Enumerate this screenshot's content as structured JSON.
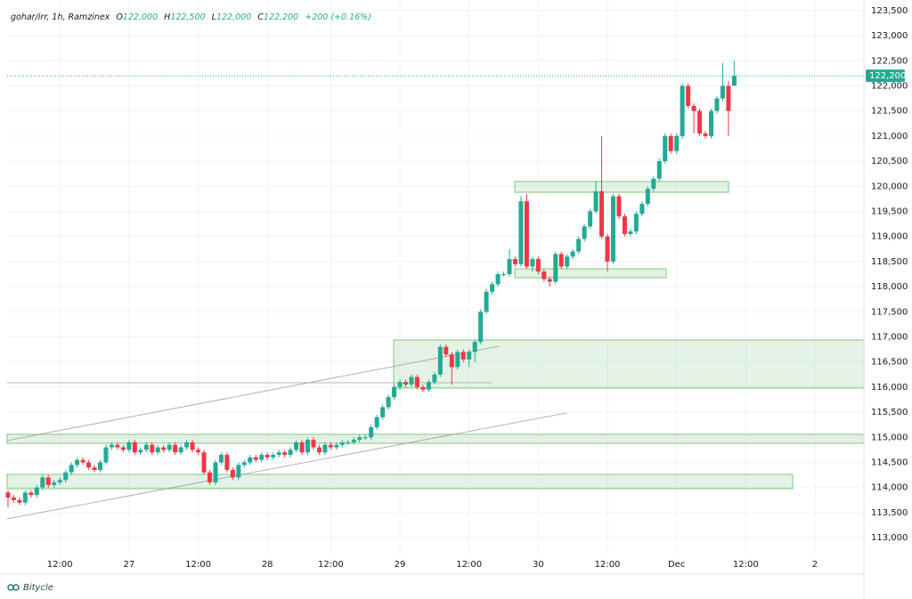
{
  "chart_data": {
    "type": "candlestick",
    "header": {
      "symbol": "gohar/irr, 1h, Ramzinex",
      "open_label": "O",
      "open": "122,000",
      "high_label": "H",
      "high": "122,500",
      "low_label": "L",
      "low": "122,000",
      "close_label": "C",
      "close": "122,200",
      "change": "+200 (+0.16%)"
    },
    "watermark": "Bitycle",
    "up_color": "#22ab94",
    "down_color": "#f23645",
    "grid": true,
    "open": [
      113900,
      113800,
      113750,
      113700,
      113900,
      113850,
      114000,
      114200,
      114050,
      114100,
      114150,
      114300,
      114450,
      114550,
      114500,
      114400,
      114350,
      114500,
      114800,
      114850,
      114800,
      114750,
      114900,
      114700,
      114750,
      114850,
      114700,
      114800,
      114750,
      114850,
      114700,
      114800,
      114900,
      114750,
      114700,
      114300,
      114100,
      114500,
      114650,
      114350,
      114200,
      114450,
      114500,
      114600,
      114550,
      114650,
      114600,
      114650,
      114700,
      114650,
      114750,
      114900,
      114700,
      114950,
      114800,
      114700,
      114850,
      114800,
      114850,
      114900,
      114900,
      114950,
      115000,
      115000,
      115200,
      115400,
      115600,
      115800,
      116000,
      116100,
      116050,
      116200,
      116000,
      115950,
      116100,
      116250,
      116800,
      116650,
      116400,
      116700,
      116550,
      116700,
      116900,
      117500,
      117900,
      118050,
      118250,
      118250,
      118550,
      118450,
      119700,
      118400,
      118550,
      118300,
      118150,
      118100,
      118650,
      118400,
      118600,
      118700,
      118950,
      119200,
      119500,
      119900,
      119000,
      118500,
      119800,
      119400,
      119050,
      119100,
      119450,
      119650,
      119950,
      120150,
      120500,
      121000,
      120700,
      121000,
      122000,
      121600,
      121500,
      121050,
      121000,
      121500,
      121750,
      122000,
      122000
    ],
    "high": [
      113950,
      113850,
      113800,
      113950,
      113950,
      114050,
      114250,
      114250,
      114150,
      114200,
      114350,
      114500,
      114600,
      114600,
      114550,
      114450,
      114550,
      114850,
      114900,
      114900,
      114850,
      114950,
      114950,
      114800,
      114900,
      114900,
      114850,
      114850,
      114900,
      114900,
      114850,
      114950,
      114950,
      114800,
      114750,
      114350,
      114550,
      114700,
      114700,
      114400,
      114500,
      114550,
      114650,
      114650,
      114700,
      114700,
      114700,
      114750,
      114750,
      114800,
      114950,
      114950,
      115000,
      115000,
      114850,
      114900,
      114900,
      114900,
      114950,
      114950,
      115000,
      115050,
      115050,
      115250,
      115450,
      115650,
      115850,
      116050,
      116150,
      116150,
      116250,
      116250,
      116050,
      116150,
      116300,
      116850,
      116850,
      116700,
      116750,
      116750,
      116750,
      116950,
      117550,
      117950,
      118100,
      118300,
      118300,
      118750,
      118600,
      119800,
      119850,
      118600,
      118600,
      118350,
      118200,
      118700,
      118700,
      118650,
      118750,
      119000,
      119250,
      119550,
      120100,
      121000,
      119050,
      119850,
      119850,
      119450,
      119150,
      119500,
      119700,
      120000,
      120200,
      120550,
      121050,
      121050,
      121050,
      122050,
      122050,
      121650,
      121550,
      121100,
      121550,
      121800,
      122450,
      122100,
      122500
    ],
    "low": [
      113600,
      113700,
      113650,
      113650,
      113800,
      113800,
      113950,
      114000,
      114000,
      114050,
      114100,
      114250,
      114400,
      114450,
      114350,
      114300,
      114300,
      114450,
      114750,
      114750,
      114700,
      114700,
      114650,
      114650,
      114700,
      114650,
      114650,
      114700,
      114700,
      114650,
      114650,
      114750,
      114700,
      114650,
      114250,
      114050,
      114050,
      114450,
      114300,
      114150,
      114150,
      114400,
      114450,
      114500,
      114500,
      114550,
      114550,
      114600,
      114600,
      114600,
      114700,
      114650,
      114650,
      114750,
      114650,
      114650,
      114750,
      114750,
      114800,
      114850,
      114850,
      114900,
      114950,
      114950,
      115150,
      115350,
      115550,
      115750,
      115950,
      116000,
      116000,
      115950,
      115900,
      115900,
      116050,
      116200,
      116600,
      116050,
      116350,
      116500,
      116400,
      116500,
      116850,
      117450,
      117850,
      118000,
      118200,
      118200,
      118400,
      118400,
      118350,
      118300,
      118250,
      118100,
      118000,
      118050,
      118350,
      118350,
      118550,
      118650,
      118900,
      119150,
      119450,
      118950,
      118300,
      118450,
      119350,
      119000,
      119000,
      119050,
      119400,
      119600,
      119900,
      120100,
      120450,
      120650,
      120650,
      120950,
      121550,
      121050,
      121000,
      120950,
      120950,
      121450,
      121700,
      121000,
      122000
    ],
    "close": [
      113800,
      113750,
      113700,
      113900,
      113850,
      114000,
      114200,
      114050,
      114100,
      114150,
      114300,
      114450,
      114550,
      114500,
      114400,
      114350,
      114500,
      114800,
      114850,
      114800,
      114750,
      114900,
      114700,
      114750,
      114850,
      114700,
      114800,
      114750,
      114850,
      114700,
      114800,
      114900,
      114750,
      114700,
      114300,
      114100,
      114500,
      114650,
      114350,
      114200,
      114450,
      114500,
      114600,
      114550,
      114650,
      114600,
      114650,
      114700,
      114650,
      114750,
      114900,
      114700,
      114950,
      114800,
      114700,
      114850,
      114800,
      114850,
      114900,
      114900,
      114950,
      115000,
      115000,
      115200,
      115400,
      115600,
      115800,
      116000,
      116100,
      116050,
      116200,
      116000,
      115950,
      116100,
      116250,
      116800,
      116650,
      116400,
      116700,
      116550,
      116700,
      116900,
      117500,
      117900,
      118050,
      118250,
      118250,
      118550,
      118450,
      119700,
      118400,
      118550,
      118300,
      118150,
      118100,
      118650,
      118400,
      118600,
      118700,
      118950,
      119200,
      119500,
      119900,
      119000,
      118500,
      119800,
      119400,
      119050,
      119100,
      119450,
      119650,
      119950,
      120150,
      120500,
      121000,
      120700,
      121000,
      122000,
      121600,
      121500,
      121050,
      121000,
      121500,
      121750,
      122000,
      121500,
      122200
    ],
    "last_price": {
      "value": 122200,
      "label": "122,200"
    },
    "xlim": [
      -0.15,
      148.5
    ],
    "xticks": [
      {
        "value": 9,
        "label": "12:00"
      },
      {
        "value": 21,
        "label": "27"
      },
      {
        "value": 33,
        "label": "12:00"
      },
      {
        "value": 45,
        "label": "28"
      },
      {
        "value": 56,
        "label": "12:00"
      },
      {
        "value": 68,
        "label": "29"
      },
      {
        "value": 80,
        "label": "12:00"
      },
      {
        "value": 92,
        "label": "30"
      },
      {
        "value": 104,
        "label": "12:00"
      },
      {
        "value": 116,
        "label": "Dec"
      },
      {
        "value": 128,
        "label": "12:00"
      },
      {
        "value": 140,
        "label": "2"
      }
    ],
    "ylim": [
      112630,
      123710
    ],
    "yticks": [
      {
        "value": 113000,
        "label": "113,000"
      },
      {
        "value": 113500,
        "label": "113,500"
      },
      {
        "value": 114000,
        "label": "114,000"
      },
      {
        "value": 114500,
        "label": "114,500"
      },
      {
        "value": 115000,
        "label": "115,000"
      },
      {
        "value": 115500,
        "label": "115,500"
      },
      {
        "value": 116000,
        "label": "116,000"
      },
      {
        "value": 116500,
        "label": "116,500"
      },
      {
        "value": 117000,
        "label": "117,000"
      },
      {
        "value": 117500,
        "label": "117,500"
      },
      {
        "value": 118000,
        "label": "118,000"
      },
      {
        "value": 118500,
        "label": "118,500"
      },
      {
        "value": 119000,
        "label": "119,000"
      },
      {
        "value": 119500,
        "label": "119,500"
      },
      {
        "value": 120000,
        "label": "120,000"
      },
      {
        "value": 120500,
        "label": "120,500"
      },
      {
        "value": 121000,
        "label": "121,000"
      },
      {
        "value": 121500,
        "label": "121,500"
      },
      {
        "value": 122000,
        "label": "122,000"
      },
      {
        "value": 122500,
        "label": "122,500"
      },
      {
        "value": 123000,
        "label": "123,000"
      },
      {
        "value": 123500,
        "label": "123,500"
      }
    ]
  }
}
